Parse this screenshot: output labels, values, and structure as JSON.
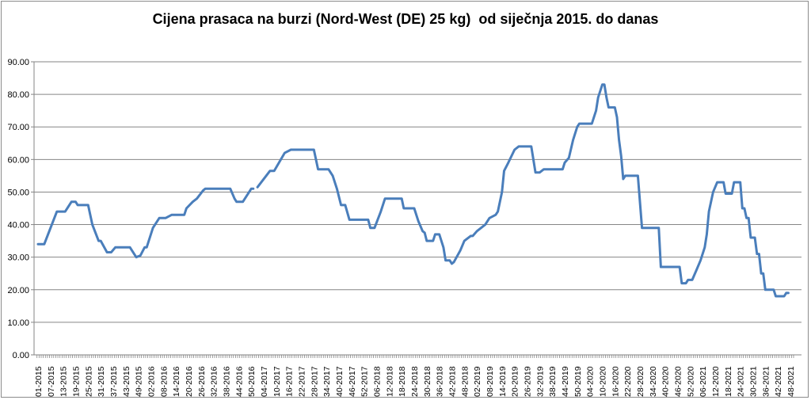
{
  "chart_data": {
    "type": "line",
    "title": "Cijena prasaca na burzi (Nord-West (DE) 25 kg)  od siječnja 2015. do danas",
    "xlabel": "",
    "ylabel": "",
    "ylim": [
      0,
      90
    ],
    "yticks": [
      "0.00",
      "10.00",
      "20.00",
      "30.00",
      "40.00",
      "50.00",
      "60.00",
      "70.00",
      "80.00",
      "90.00"
    ],
    "grid": true,
    "legend": "none",
    "line_color": "#4a7ebb",
    "grid_color": "#868686",
    "x_tick_labels": [
      "01-2015",
      "07-2015",
      "13-2015",
      "19-2015",
      "25-2015",
      "31-2015",
      "37-2015",
      "43-2015",
      "49-2015",
      "02-2016",
      "08-2016",
      "14-2016",
      "20-2016",
      "26-2016",
      "32-2016",
      "38-2016",
      "44-2016",
      "50-2016",
      "04-2017",
      "10-2017",
      "16-2017",
      "22-2017",
      "28-2017",
      "34-2017",
      "40-2017",
      "46-2017",
      "52-2017",
      "06-2018",
      "12-2018",
      "18-2018",
      "24-2018",
      "30-2018",
      "36-2018",
      "42-2018",
      "48-2018",
      "02-2019",
      "08-2019",
      "14-2019",
      "20-2019",
      "26-2019",
      "32-2019",
      "38-2019",
      "44-2019",
      "50-2019",
      "04-2020",
      "10-2020",
      "16-2020",
      "22-2020",
      "28-2020",
      "34-2020",
      "40-2020",
      "46-2020",
      "52-2020",
      "06-2021",
      "12-2020",
      "18-2021",
      "24-2021",
      "30-2021",
      "36-2021",
      "42-2021",
      "48-2021"
    ],
    "series": [
      {
        "points": [
          [
            "01-2015",
            34
          ],
          [
            "04-2015",
            34
          ],
          [
            "10-2015",
            44
          ],
          [
            "14-2015",
            44
          ],
          [
            "17-2015",
            47
          ],
          [
            "19-2015",
            47
          ],
          [
            "20-2015",
            46
          ],
          [
            "25-2015",
            46
          ],
          [
            "27-2015",
            40
          ],
          [
            "30-2015",
            35
          ],
          [
            "31-2015",
            35
          ],
          [
            "34-2015",
            31.5
          ],
          [
            "36-2015",
            31.5
          ],
          [
            "38-2015",
            33
          ],
          [
            "45-2015",
            33
          ],
          [
            "48-2015",
            30
          ],
          [
            "50-2015",
            30.5
          ],
          [
            "52-2015",
            33
          ],
          [
            "53-2015",
            33
          ],
          [
            "03-2016",
            39
          ],
          [
            "06-2016",
            42
          ],
          [
            "09-2016",
            42
          ],
          [
            "12-2016",
            43
          ],
          [
            "18-2016",
            43
          ],
          [
            "19-2016",
            45
          ],
          [
            "22-2016",
            47
          ],
          [
            "24-2016",
            48
          ],
          [
            "27-2016",
            50.5
          ],
          [
            "28-2016",
            51
          ],
          [
            "40-2016",
            51
          ],
          [
            "42-2016",
            48
          ],
          [
            "43-2016",
            47
          ],
          [
            "46-2016",
            47
          ],
          [
            "50-2016",
            51
          ],
          [
            "51-2016",
            51
          ],
          null,
          [
            "01-2017",
            51.5
          ],
          [
            "07-2017",
            56.5
          ],
          [
            "09-2017",
            56.5
          ],
          [
            "14-2017",
            62
          ],
          [
            "17-2017",
            63
          ],
          [
            "28-2017",
            63
          ],
          [
            "30-2017",
            57
          ],
          [
            "35-2017",
            57
          ],
          [
            "37-2017",
            55
          ],
          [
            "39-2017",
            51
          ],
          [
            "41-2017",
            46
          ],
          [
            "43-2017",
            46
          ],
          [
            "45-2017",
            41.5
          ],
          [
            "02-2018",
            41.5
          ],
          [
            "03-2018",
            39
          ],
          [
            "05-2018",
            39
          ],
          [
            "08-2018",
            44
          ],
          [
            "10-2018",
            48
          ],
          [
            "18-2018",
            48
          ],
          [
            "19-2018",
            45
          ],
          [
            "24-2018",
            45
          ],
          [
            "26-2018",
            41
          ],
          [
            "28-2018",
            38
          ],
          [
            "29-2018",
            37.5
          ],
          [
            "30-2018",
            35
          ],
          [
            "33-2018",
            35
          ],
          [
            "34-2018",
            37
          ],
          [
            "36-2018",
            37
          ],
          [
            "38-2018",
            33
          ],
          [
            "39-2018",
            29
          ],
          [
            "41-2018",
            29
          ],
          [
            "42-2018",
            28
          ],
          [
            "43-2018",
            28.5
          ],
          [
            "46-2018",
            32
          ],
          [
            "48-2018",
            35
          ],
          [
            "51-2018",
            36.5
          ],
          [
            "52-2018",
            36.5
          ],
          [
            "02-2019",
            38
          ],
          [
            "06-2019",
            40
          ],
          [
            "08-2019",
            42
          ],
          [
            "11-2019",
            43
          ],
          [
            "12-2019",
            44
          ],
          [
            "14-2019",
            50
          ],
          [
            "15-2019",
            56.5
          ],
          [
            "17-2019",
            59
          ],
          [
            "20-2019",
            63
          ],
          [
            "22-2019",
            64
          ],
          [
            "28-2019",
            64
          ],
          [
            "30-2019",
            56
          ],
          [
            "32-2019",
            56
          ],
          [
            "34-2019",
            57
          ],
          [
            "43-2019",
            57
          ],
          [
            "44-2019",
            59
          ],
          [
            "46-2019",
            60.5
          ],
          [
            "48-2019",
            66
          ],
          [
            "50-2019",
            70
          ],
          [
            "51-2019",
            71
          ],
          [
            "05-2020",
            71
          ],
          [
            "07-2020",
            75
          ],
          [
            "08-2020",
            79
          ],
          [
            "10-2020",
            83
          ],
          [
            "11-2020",
            83
          ],
          [
            "12-2020",
            79
          ],
          [
            "13-2020",
            76
          ],
          [
            "16-2020",
            76
          ],
          [
            "17-2020",
            73
          ],
          [
            "18-2020",
            66
          ],
          [
            "19-2020",
            61
          ],
          [
            "20-2020",
            54
          ],
          [
            "21-2020",
            55
          ],
          [
            "27-2020",
            55
          ],
          [
            "29-2020",
            39
          ],
          [
            "37-2020",
            39
          ],
          [
            "38-2020",
            27
          ],
          [
            "47-2020",
            27
          ],
          [
            "48-2020",
            22
          ],
          [
            "50-2020",
            22
          ],
          [
            "51-2020",
            23
          ],
          [
            "01-2021",
            23
          ],
          [
            "03-2021",
            26
          ],
          [
            "05-2021",
            29
          ],
          [
            "07-2021",
            33
          ],
          [
            "08-2021",
            37
          ],
          [
            "09-2021",
            44
          ],
          [
            "11-2021",
            50
          ],
          [
            "13-2021",
            53
          ],
          [
            "16-2021",
            53
          ],
          [
            "17-2021",
            49.5
          ],
          [
            "20-2021",
            49.5
          ],
          [
            "21-2021",
            53
          ],
          [
            "24-2021",
            53
          ],
          [
            "25-2021",
            45
          ],
          [
            "26-2021",
            45
          ],
          [
            "27-2021",
            42
          ],
          [
            "28-2021",
            42
          ],
          [
            "29-2021",
            36
          ],
          [
            "31-2021",
            36
          ],
          [
            "32-2021",
            31
          ],
          [
            "33-2021",
            31
          ],
          [
            "34-2021",
            25
          ],
          [
            "35-2021",
            25
          ],
          [
            "36-2021",
            20
          ],
          [
            "40-2021",
            20
          ],
          [
            "41-2021",
            18
          ],
          [
            "45-2021",
            18
          ],
          [
            "46-2021",
            19
          ],
          [
            "47-2021",
            19
          ]
        ]
      }
    ]
  }
}
